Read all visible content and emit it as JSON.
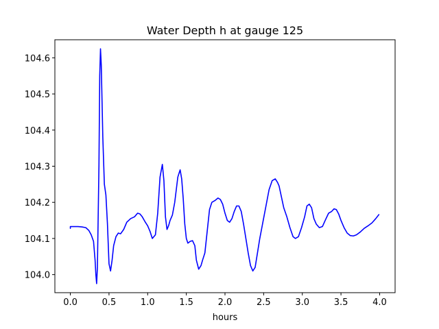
{
  "chart_data": {
    "type": "line",
    "title": "Water Depth h at gauge 125",
    "xlabel": "hours",
    "ylabel": "",
    "xlim": [
      -0.2,
      4.2
    ],
    "ylim": [
      103.95,
      104.65
    ],
    "x_ticks": [
      0.0,
      0.5,
      1.0,
      1.5,
      2.0,
      2.5,
      3.0,
      3.5,
      4.0
    ],
    "x_tick_labels": [
      "0.0",
      "0.5",
      "1.0",
      "1.5",
      "2.0",
      "2.5",
      "3.0",
      "3.5",
      "4.0"
    ],
    "y_ticks": [
      104.0,
      104.1,
      104.2,
      104.3,
      104.4,
      104.5,
      104.6
    ],
    "y_tick_labels": [
      "104.0",
      "104.1",
      "104.2",
      "104.3",
      "104.4",
      "104.5",
      "104.6"
    ],
    "grid": false,
    "legend": "none",
    "series": [
      {
        "color": "#0000ff",
        "x": [
          0.0,
          0.0,
          0.05,
          0.1,
          0.15,
          0.2,
          0.24,
          0.27,
          0.3,
          0.32,
          0.33,
          0.34,
          0.35,
          0.37,
          0.38,
          0.39,
          0.4,
          0.42,
          0.44,
          0.46,
          0.48,
          0.5,
          0.52,
          0.54,
          0.56,
          0.59,
          0.62,
          0.65,
          0.69,
          0.73,
          0.78,
          0.83,
          0.87,
          0.9,
          0.93,
          0.97,
          1.0,
          1.03,
          1.06,
          1.1,
          1.13,
          1.16,
          1.19,
          1.21,
          1.23,
          1.25,
          1.27,
          1.29,
          1.32,
          1.35,
          1.39,
          1.42,
          1.44,
          1.46,
          1.48,
          1.5,
          1.52,
          1.55,
          1.58,
          1.61,
          1.63,
          1.66,
          1.69,
          1.71,
          1.74,
          1.77,
          1.8,
          1.83,
          1.87,
          1.91,
          1.94,
          1.97,
          2.0,
          2.03,
          2.06,
          2.09,
          2.12,
          2.15,
          2.18,
          2.21,
          2.24,
          2.27,
          2.3,
          2.33,
          2.36,
          2.39,
          2.42,
          2.45,
          2.49,
          2.53,
          2.57,
          2.61,
          2.65,
          2.68,
          2.7,
          2.73,
          2.76,
          2.8,
          2.84,
          2.88,
          2.91,
          2.95,
          2.99,
          3.03,
          3.06,
          3.09,
          3.12,
          3.15,
          3.18,
          3.22,
          3.26,
          3.3,
          3.34,
          3.38,
          3.41,
          3.44,
          3.47,
          3.5,
          3.54,
          3.58,
          3.62,
          3.66,
          3.7,
          3.75,
          3.8,
          3.85,
          3.9,
          3.95,
          3.99
        ],
        "y": [
          104.128,
          104.133,
          104.133,
          104.133,
          104.132,
          104.13,
          104.122,
          104.11,
          104.092,
          104.04,
          104.0,
          103.975,
          104.02,
          104.3,
          104.55,
          104.625,
          104.58,
          104.38,
          104.25,
          104.22,
          104.14,
          104.03,
          104.01,
          104.04,
          104.08,
          104.105,
          104.115,
          104.113,
          104.125,
          104.145,
          104.155,
          104.16,
          104.17,
          104.168,
          104.16,
          104.145,
          104.135,
          104.12,
          104.1,
          104.11,
          104.17,
          104.27,
          104.305,
          104.26,
          104.16,
          104.125,
          104.135,
          104.15,
          104.165,
          104.2,
          104.27,
          104.29,
          104.265,
          104.21,
          104.14,
          104.1,
          104.087,
          104.092,
          104.094,
          104.08,
          104.04,
          104.015,
          104.025,
          104.04,
          104.06,
          104.12,
          104.18,
          104.2,
          104.205,
          104.212,
          104.208,
          104.195,
          104.17,
          104.15,
          104.145,
          104.155,
          104.175,
          104.19,
          104.19,
          104.175,
          104.14,
          104.1,
          104.06,
          104.025,
          104.01,
          104.02,
          104.06,
          104.1,
          104.145,
          104.19,
          104.235,
          104.26,
          104.265,
          104.255,
          104.245,
          104.215,
          104.185,
          104.16,
          104.13,
          104.105,
          104.1,
          104.105,
          104.13,
          104.16,
          104.19,
          104.195,
          104.185,
          104.155,
          104.14,
          104.13,
          104.133,
          104.152,
          104.17,
          104.175,
          104.182,
          104.18,
          104.168,
          104.15,
          104.13,
          104.115,
          104.108,
          104.107,
          104.11,
          104.118,
          104.128,
          104.135,
          104.143,
          104.155,
          104.166
        ]
      }
    ]
  }
}
